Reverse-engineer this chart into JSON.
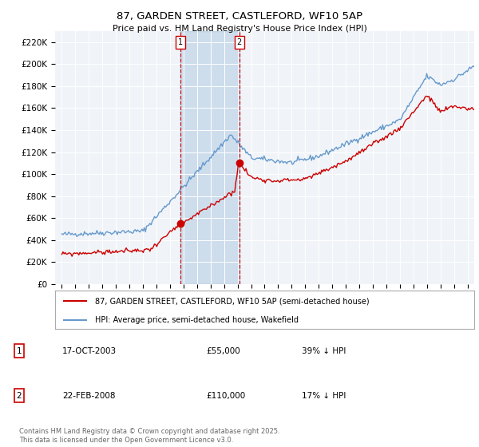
{
  "title": "87, GARDEN STREET, CASTLEFORD, WF10 5AP",
  "subtitle": "Price paid vs. HM Land Registry's House Price Index (HPI)",
  "xlim": [
    1994.5,
    2025.5
  ],
  "ylim": [
    0,
    230000
  ],
  "yticks": [
    0,
    20000,
    40000,
    60000,
    80000,
    100000,
    120000,
    140000,
    160000,
    180000,
    200000,
    220000
  ],
  "ytick_labels": [
    "£0",
    "£20K",
    "£40K",
    "£60K",
    "£80K",
    "£100K",
    "£120K",
    "£140K",
    "£160K",
    "£180K",
    "£200K",
    "£220K"
  ],
  "transactions": [
    {
      "date_num": 2003.79,
      "price": 55000,
      "label": "1"
    },
    {
      "date_num": 2008.13,
      "price": 110000,
      "label": "2"
    }
  ],
  "transaction_table": [
    {
      "num": "1",
      "date": "17-OCT-2003",
      "price": "£55,000",
      "hpi": "39% ↓ HPI"
    },
    {
      "num": "2",
      "date": "22-FEB-2008",
      "price": "£110,000",
      "hpi": "17% ↓ HPI"
    }
  ],
  "legend_house": "87, GARDEN STREET, CASTLEFORD, WF10 5AP (semi-detached house)",
  "legend_hpi": "HPI: Average price, semi-detached house, Wakefield",
  "footer": "Contains HM Land Registry data © Crown copyright and database right 2025.\nThis data is licensed under the Open Government Licence v3.0.",
  "house_color": "#cc0000",
  "hpi_color": "#6699cc",
  "shade_color": "#d0e4f7",
  "background_color": "#ffffff",
  "plot_bg_color": "#f0f4f8"
}
